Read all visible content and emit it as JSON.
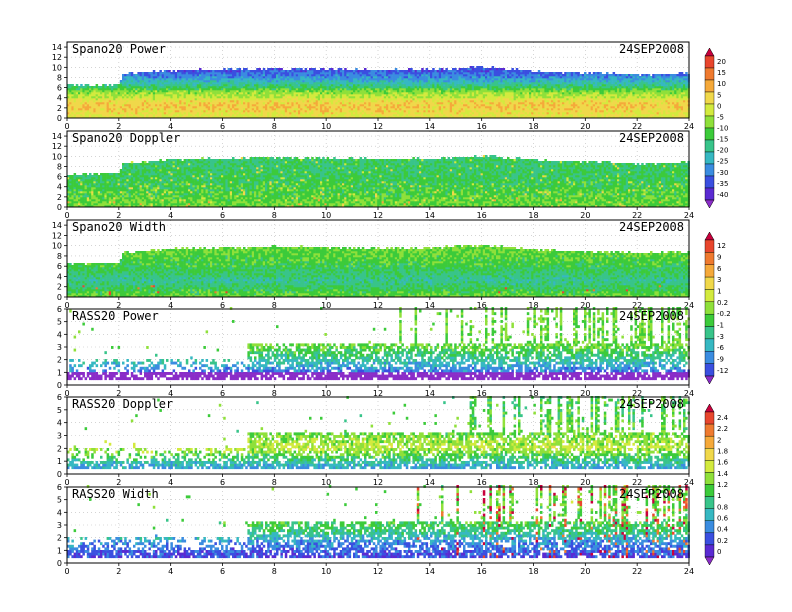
{
  "chart_data": [
    {
      "type": "heatmap",
      "title": "Spano20  Power",
      "date": "24SEP2008",
      "x_ticks": [
        "0",
        "2",
        "4",
        "6",
        "8",
        "10",
        "12",
        "14",
        "16",
        "18",
        "20",
        "22",
        "24"
      ],
      "xlim": [
        0,
        24
      ],
      "y_ticks": [
        "0",
        "2",
        "4",
        "6",
        "8",
        "10",
        "12",
        "14"
      ],
      "ylim": [
        0,
        15
      ],
      "grid": true,
      "echo_top": [
        [
          0,
          6.3
        ],
        [
          2,
          6.5
        ],
        [
          2.1,
          8.6
        ],
        [
          4,
          9.2
        ],
        [
          6,
          9.4
        ],
        [
          8,
          9.6
        ],
        [
          10,
          9.5
        ],
        [
          12,
          9.3
        ],
        [
          14,
          9.4
        ],
        [
          16,
          9.9
        ],
        [
          18,
          9.1
        ],
        [
          20,
          8.7
        ],
        [
          22,
          8.4
        ],
        [
          23.8,
          8.6
        ]
      ],
      "value_range": [
        -40,
        20
      ],
      "dominant_values_by_height": [
        [
          0,
          -2
        ],
        [
          1,
          0
        ],
        [
          2,
          2
        ],
        [
          3,
          1
        ],
        [
          4,
          -5
        ],
        [
          5,
          -8
        ],
        [
          6,
          -15
        ],
        [
          7,
          -20
        ],
        [
          8,
          -25
        ],
        [
          9.5,
          -30
        ]
      ]
    },
    {
      "type": "heatmap",
      "title": "Spano20  Doppler",
      "date": "24SEP2008",
      "x_ticks": [
        "0",
        "2",
        "4",
        "6",
        "8",
        "10",
        "12",
        "14",
        "16",
        "18",
        "20",
        "22",
        "24"
      ],
      "xlim": [
        0,
        24
      ],
      "y_ticks": [
        "0",
        "2",
        "4",
        "6",
        "8",
        "10",
        "12",
        "14"
      ],
      "ylim": [
        0,
        15
      ],
      "grid": true,
      "echo_top": [
        [
          0,
          6.3
        ],
        [
          2,
          6.5
        ],
        [
          2.1,
          8.4
        ],
        [
          4,
          9.2
        ],
        [
          6,
          9.4
        ],
        [
          8,
          9.6
        ],
        [
          10,
          9.5
        ],
        [
          12,
          9.3
        ],
        [
          14,
          9.4
        ],
        [
          16,
          9.9
        ],
        [
          18,
          9.1
        ],
        [
          20,
          8.7
        ],
        [
          22,
          8.4
        ],
        [
          23.8,
          8.6
        ]
      ],
      "value_range": [
        -40,
        20
      ],
      "dominant_values_by_height": [
        [
          0,
          -10
        ],
        [
          3,
          -12
        ],
        [
          6,
          -14
        ],
        [
          9,
          -15
        ]
      ]
    },
    {
      "type": "heatmap",
      "title": "Spano20  Width",
      "date": "24SEP2008",
      "x_ticks": [
        "0",
        "2",
        "4",
        "6",
        "8",
        "10",
        "12",
        "14",
        "16",
        "18",
        "20",
        "22",
        "24"
      ],
      "xlim": [
        0,
        24
      ],
      "y_ticks": [
        "0",
        "2",
        "4",
        "6",
        "8",
        "10",
        "12",
        "14"
      ],
      "ylim": [
        0,
        15
      ],
      "grid": true,
      "echo_top": [
        [
          0,
          6.3
        ],
        [
          2,
          6.5
        ],
        [
          2.1,
          8.4
        ],
        [
          4,
          9.2
        ],
        [
          6,
          9.4
        ],
        [
          8,
          9.6
        ],
        [
          10,
          9.5
        ],
        [
          12,
          9.3
        ],
        [
          14,
          9.4
        ],
        [
          16,
          9.9
        ],
        [
          18,
          9.1
        ],
        [
          20,
          8.7
        ],
        [
          22,
          8.4
        ],
        [
          23.8,
          8.6
        ]
      ],
      "value_range": [
        -12,
        12
      ],
      "dominant_values_by_height": [
        [
          0,
          -1
        ],
        [
          1,
          -2
        ],
        [
          3,
          -4
        ],
        [
          6,
          -2
        ],
        [
          9,
          -1
        ]
      ]
    },
    {
      "type": "heatmap",
      "title": "RASS20  Power",
      "date": "24SEP2008",
      "x_ticks": [
        "0",
        "2",
        "4",
        "6",
        "8",
        "10",
        "12",
        "14",
        "16",
        "18",
        "20",
        "22",
        "24"
      ],
      "xlim": [
        0,
        24
      ],
      "y_ticks": [
        "0",
        "1",
        "2",
        "3",
        "4",
        "5",
        "6"
      ],
      "ylim": [
        0,
        6
      ],
      "grid": true,
      "value_range": [
        -12,
        12
      ],
      "dominant_values_by_height": [
        [
          0.3,
          -11
        ],
        [
          1,
          -8
        ],
        [
          2,
          -4
        ],
        [
          3,
          -1
        ]
      ]
    },
    {
      "type": "heatmap",
      "title": "RASS20  Doppler",
      "date": "24SEP2008",
      "x_ticks": [
        "0",
        "2",
        "4",
        "6",
        "8",
        "10",
        "12",
        "14",
        "16",
        "18",
        "20",
        "22",
        "24"
      ],
      "xlim": [
        0,
        24
      ],
      "y_ticks": [
        "0",
        "1",
        "2",
        "3",
        "4",
        "5",
        "6"
      ],
      "ylim": [
        0,
        6
      ],
      "grid": true,
      "value_range": [
        0,
        2.4
      ],
      "dominant_values_by_height": [
        [
          0.5,
          0.7
        ],
        [
          1.5,
          1.2
        ],
        [
          2,
          1.4
        ],
        [
          3,
          1.2
        ],
        [
          5,
          1.1
        ]
      ]
    },
    {
      "type": "heatmap",
      "title": "RASS20  Width",
      "date": "24SEP2008",
      "x_ticks": [
        "0",
        "2",
        "4",
        "6",
        "8",
        "10",
        "12",
        "14",
        "16",
        "18",
        "20",
        "22",
        "24"
      ],
      "xlim": [
        0,
        24
      ],
      "y_ticks": [
        "0",
        "1",
        "2",
        "3",
        "4",
        "5",
        "6"
      ],
      "ylim": [
        0,
        6
      ],
      "grid": true,
      "value_range": [
        0,
        2.4
      ],
      "dominant_values_by_height": [
        [
          0.5,
          0.4
        ],
        [
          1.5,
          0.6
        ],
        [
          2.5,
          1.0
        ],
        [
          4,
          1.2
        ]
      ]
    }
  ],
  "colorbars": [
    {
      "labels": [
        "20",
        "15",
        "10",
        "5",
        "0",
        "-5",
        "-10",
        "-15",
        "-20",
        "-25",
        "-30",
        "-35",
        "-40"
      ],
      "colors": [
        "#c8003c",
        "#e8462d",
        "#ef7a2f",
        "#f5a93a",
        "#f0d84a",
        "#d3ea3e",
        "#8fe03a",
        "#3ccb3a",
        "#38c48a",
        "#36b8c2",
        "#3a8ce0",
        "#3a4fe0",
        "#5a2ad2",
        "#8a2cc8"
      ]
    },
    {
      "labels": [
        "12",
        "9",
        "6",
        "3",
        "1",
        "0.2",
        "-0.2",
        "-1",
        "-3",
        "-6",
        "-9",
        "-12"
      ],
      "colors": [
        "#c8003c",
        "#e8462d",
        "#ef7a2f",
        "#f5a93a",
        "#f0d84a",
        "#d3ea3e",
        "#8fe03a",
        "#3ccb3a",
        "#38c48a",
        "#36b8c2",
        "#3a8ce0",
        "#3a4fe0",
        "#8a2cc8"
      ]
    },
    {
      "labels": [
        "2.4",
        "2.2",
        "2",
        "1.8",
        "1.6",
        "1.4",
        "1.2",
        "1",
        "0.8",
        "0.6",
        "0.4",
        "0.2",
        "0"
      ],
      "colors": [
        "#c8003c",
        "#e8462d",
        "#ef7a2f",
        "#f5a93a",
        "#f0d84a",
        "#d3ea3e",
        "#8fe03a",
        "#3ccb3a",
        "#38c48a",
        "#36b8c2",
        "#3a8ce0",
        "#3a4fe0",
        "#5a2ad2",
        "#8a2cc8"
      ]
    }
  ]
}
